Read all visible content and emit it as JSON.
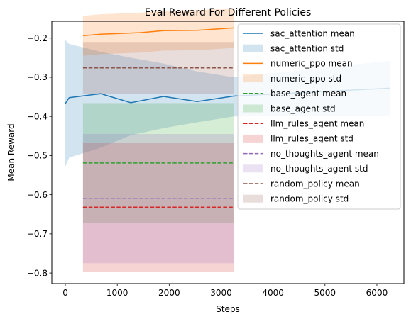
{
  "chart_data": {
    "type": "line",
    "title": "Eval Reward For Different Policies",
    "xlabel": "Steps",
    "ylabel": "Mean Reward",
    "xlim": [
      -260,
      6520
    ],
    "ylim": [
      -0.827,
      -0.157
    ],
    "xticks": [
      0,
      1000,
      2000,
      3000,
      4000,
      5000,
      6000
    ],
    "yticks": [
      -0.8,
      -0.7,
      -0.6,
      -0.5,
      -0.4,
      -0.3,
      -0.2
    ],
    "grid": false,
    "legend_position": "top-right",
    "series": [
      {
        "name": "sac_attention mean",
        "std_name": "sac_attention std",
        "color": "#1f77b4",
        "style": "solid",
        "x": [
          0,
          75,
          680,
          1260,
          1890,
          2540,
          3240,
          6250
        ],
        "y": [
          -0.367,
          -0.352,
          -0.342,
          -0.365,
          -0.349,
          -0.362,
          -0.348,
          -0.328
        ],
        "lower": [
          -0.528,
          -0.505,
          -0.48,
          -0.448,
          -0.43,
          -0.415,
          -0.4,
          -0.398
        ],
        "upper": [
          -0.205,
          -0.215,
          -0.235,
          -0.25,
          -0.265,
          -0.285,
          -0.3,
          -0.258
        ]
      },
      {
        "name": "numeric_ppo mean",
        "std_name": "numeric_ppo std",
        "color": "#ff7f0e",
        "style": "solid",
        "x": [
          340,
          680,
          1260,
          1450,
          1890,
          2540,
          3240
        ],
        "y": [
          -0.194,
          -0.19,
          -0.187,
          -0.186,
          -0.181,
          -0.18,
          -0.174
        ],
        "lower": [
          -0.245,
          -0.241,
          -0.238,
          -0.237,
          -0.232,
          -0.231,
          -0.225
        ],
        "upper": [
          -0.143,
          -0.139,
          -0.136,
          -0.135,
          -0.13,
          -0.129,
          -0.123
        ]
      },
      {
        "name": "base_agent mean",
        "std_name": "base_agent std",
        "color": "#2ca02c",
        "style": "dashed",
        "x": [
          340,
          3240
        ],
        "y": [
          -0.519,
          -0.519
        ],
        "lower": [
          -0.672,
          -0.672
        ],
        "upper": [
          -0.366,
          -0.366
        ]
      },
      {
        "name": "llm_rules_agent mean",
        "std_name": "llm_rules_agent std",
        "color": "#d62728",
        "style": "dashed",
        "x": [
          340,
          3240
        ],
        "y": [
          -0.632,
          -0.632
        ],
        "lower": [
          -0.797,
          -0.797
        ],
        "upper": [
          -0.467,
          -0.467
        ]
      },
      {
        "name": "no_thoughts_agent mean",
        "std_name": "no_thoughts_agent std",
        "color": "#9467bd",
        "style": "dashed",
        "x": [
          340,
          3240
        ],
        "y": [
          -0.61,
          -0.61
        ],
        "lower": [
          -0.775,
          -0.775
        ],
        "upper": [
          -0.445,
          -0.445
        ]
      },
      {
        "name": "random_policy mean",
        "std_name": "random_policy std",
        "color": "#8c564b",
        "style": "dashed",
        "x": [
          340,
          3240
        ],
        "y": [
          -0.276,
          -0.276
        ],
        "lower": [
          -0.342,
          -0.342
        ],
        "upper": [
          -0.21,
          -0.21
        ]
      }
    ]
  }
}
